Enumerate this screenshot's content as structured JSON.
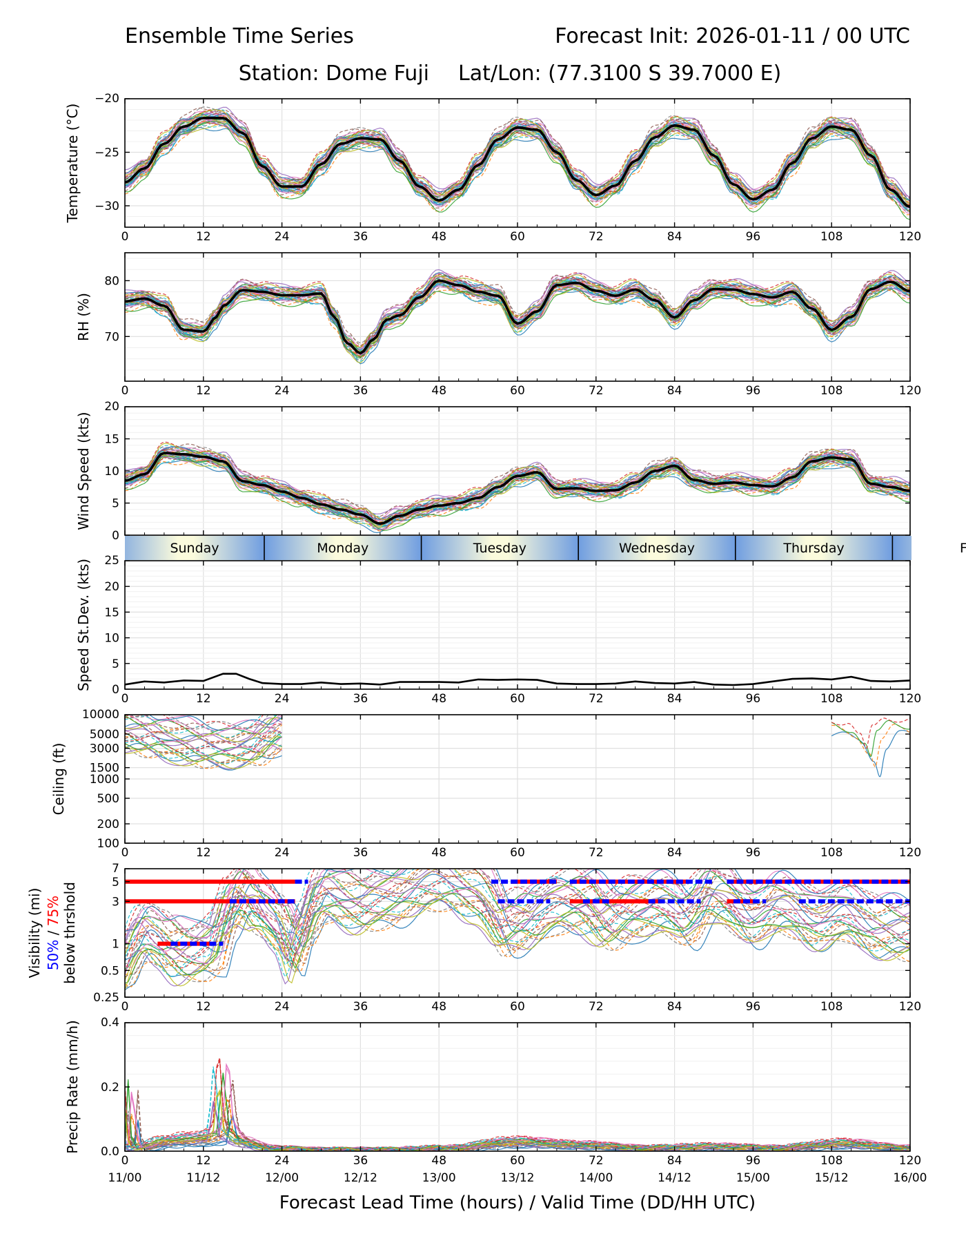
{
  "header": {
    "title_left": "Ensemble Time Series",
    "title_right": "Forecast Init: 2026-01-11 / 00 UTC",
    "subtitle_station": "Station: Dome Fuji",
    "subtitle_latlon": "Lat/Lon: (77.3100 S 39.7000 E)"
  },
  "x_axis": {
    "label": "Forecast Lead Time (hours) / Valid Time (DD/HH UTC)",
    "lead_ticks": [
      0,
      12,
      24,
      36,
      48,
      60,
      72,
      84,
      96,
      108,
      120
    ],
    "lead_tick_labels": [
      "0",
      "12",
      "24",
      "36",
      "48",
      "60",
      "72",
      "84",
      "96",
      "108",
      "120"
    ],
    "valid_labels": [
      "11/00",
      "11/12",
      "12/00",
      "12/12",
      "13/00",
      "13/12",
      "14/00",
      "14/12",
      "15/00",
      "15/12",
      "16/00"
    ],
    "xlim": [
      0,
      120
    ]
  },
  "day_bar": {
    "days": [
      "Sunday",
      "Monday",
      "Tuesday",
      "Wednesday",
      "Thursday"
    ],
    "day_start_hours": [
      0,
      21.3,
      45.3,
      69.3,
      93.3
    ],
    "next_day_hour": 117.3,
    "overflow_label": "F"
  },
  "colors": {
    "mean_line": "#000000",
    "p50": "#0000ff",
    "p75": "#ff0000",
    "grid": "#e0e0e0",
    "day_dark": "#6f9de0",
    "day_light": "#fbfbdc"
  },
  "chart_data": [
    {
      "type": "line",
      "id": "temperature",
      "ylabel": "Temperature (°C)",
      "ylim": [
        -32,
        -20
      ],
      "yticks": [
        -30,
        -25,
        -20
      ],
      "ytick_labels": [
        "−30",
        "−25",
        "−20"
      ],
      "series": [
        {
          "name": "Ensemble mean",
          "x": [
            0,
            3,
            6,
            9,
            12,
            15,
            18,
            21,
            24,
            27,
            30,
            33,
            36,
            39,
            42,
            45,
            48,
            51,
            54,
            57,
            60,
            63,
            66,
            69,
            72,
            75,
            78,
            81,
            84,
            87,
            90,
            93,
            96,
            99,
            102,
            105,
            108,
            111,
            114,
            117,
            120
          ],
          "values": [
            -27.8,
            -26.5,
            -24.2,
            -22.6,
            -21.8,
            -21.8,
            -23.2,
            -26.3,
            -28.2,
            -28.2,
            -26.1,
            -24.2,
            -23.7,
            -23.8,
            -25.8,
            -28.2,
            -29.5,
            -28.5,
            -26.2,
            -23.8,
            -22.7,
            -22.9,
            -25.0,
            -27.6,
            -29.0,
            -28.1,
            -25.8,
            -23.6,
            -22.5,
            -22.9,
            -25.3,
            -28.0,
            -29.4,
            -28.5,
            -26.0,
            -23.7,
            -22.6,
            -22.9,
            -25.3,
            -28.5,
            -30.1
          ]
        }
      ]
    },
    {
      "type": "line",
      "id": "relative_humidity",
      "ylabel": "RH (%)",
      "ylim": [
        62,
        85
      ],
      "yticks": [
        70,
        80
      ],
      "ytick_labels": [
        "70",
        "80"
      ],
      "series": [
        {
          "name": "Ensemble mean",
          "x": [
            0,
            3,
            6,
            9,
            12,
            14,
            15,
            18,
            21,
            24,
            27,
            30,
            32,
            34,
            36,
            38,
            40,
            42,
            45,
            48,
            51,
            54,
            57,
            60,
            63,
            66,
            69,
            72,
            75,
            78,
            81,
            84,
            87,
            90,
            93,
            96,
            99,
            102,
            105,
            108,
            111,
            114,
            117,
            120
          ],
          "values": [
            76.3,
            76.8,
            75.5,
            71.2,
            70.9,
            73.5,
            75.5,
            78.3,
            78.0,
            77.4,
            77.4,
            77.7,
            73.5,
            68.8,
            67.0,
            69.5,
            73.0,
            73.8,
            77.0,
            80.0,
            79.2,
            78.0,
            77.3,
            72.3,
            74.5,
            79.2,
            79.6,
            78.2,
            77.3,
            78.4,
            76.5,
            73.4,
            76.5,
            78.5,
            78.4,
            77.6,
            77.0,
            78.0,
            75.0,
            71.2,
            73.5,
            78.5,
            79.8,
            78.1
          ]
        }
      ]
    },
    {
      "type": "line",
      "id": "wind_speed",
      "ylabel": "Wind Speed (kts)",
      "ylim": [
        0,
        20
      ],
      "yticks": [
        0,
        5,
        10,
        15,
        20
      ],
      "ytick_labels": [
        "0",
        "5",
        "10",
        "15",
        "20"
      ],
      "series": [
        {
          "name": "Ensemble mean",
          "x": [
            0,
            3,
            6,
            9,
            12,
            15,
            18,
            21,
            24,
            27,
            30,
            33,
            36,
            39,
            42,
            45,
            48,
            51,
            54,
            57,
            60,
            63,
            66,
            69,
            72,
            75,
            78,
            81,
            84,
            87,
            90,
            93,
            96,
            99,
            102,
            105,
            108,
            111,
            114,
            117,
            120
          ],
          "values": [
            8.5,
            9.5,
            12.8,
            12.6,
            12.2,
            11.5,
            8.4,
            7.8,
            6.8,
            5.8,
            4.8,
            4.0,
            3.2,
            1.8,
            3.0,
            4.0,
            4.6,
            5.0,
            5.8,
            7.5,
            9.2,
            9.8,
            7.2,
            7.3,
            6.9,
            7.0,
            8.2,
            10.0,
            10.8,
            8.6,
            8.0,
            8.2,
            7.8,
            7.6,
            9.0,
            11.5,
            12.1,
            11.8,
            8.0,
            7.5,
            6.9
          ]
        }
      ]
    },
    {
      "type": "line",
      "id": "speed_stdev",
      "ylabel": "Speed St.Dev. (kts)",
      "ylim": [
        0,
        25
      ],
      "yticks": [
        0,
        5,
        10,
        15,
        20,
        25
      ],
      "ytick_labels": [
        "0",
        "5",
        "10",
        "15",
        "20",
        "25"
      ],
      "series": [
        {
          "name": "Standard deviation",
          "x": [
            0,
            3,
            6,
            9,
            12,
            15,
            17,
            19,
            21,
            24,
            27,
            30,
            33,
            36,
            39,
            42,
            45,
            48,
            51,
            54,
            57,
            60,
            63,
            66,
            69,
            72,
            75,
            78,
            81,
            84,
            87,
            90,
            93,
            96,
            99,
            102,
            105,
            108,
            111,
            114,
            117,
            120
          ],
          "values": [
            0.9,
            1.5,
            1.3,
            1.7,
            1.6,
            3.0,
            3.0,
            2.0,
            1.2,
            1.0,
            1.0,
            1.3,
            1.0,
            1.1,
            0.9,
            1.4,
            1.4,
            1.4,
            1.3,
            1.9,
            1.8,
            1.9,
            1.8,
            1.1,
            1.0,
            1.0,
            1.1,
            1.5,
            1.2,
            1.1,
            1.4,
            0.9,
            0.8,
            1.0,
            1.5,
            2.0,
            2.1,
            1.9,
            2.4,
            1.6,
            1.5,
            1.7
          ]
        }
      ]
    },
    {
      "type": "line",
      "id": "ceiling",
      "ylabel": "Ceiling (ft)",
      "yscale": "log",
      "ylim": [
        100,
        10000
      ],
      "yticks": [
        100,
        200,
        500,
        1000,
        1500,
        3000,
        5000,
        10000
      ],
      "ytick_labels": [
        "100",
        "200",
        "500",
        "1000",
        "1500",
        "3000",
        "5000",
        "10000"
      ],
      "series": [
        {
          "name": "Typical member",
          "x": [
            0,
            4,
            8,
            12,
            16,
            20,
            24
          ],
          "values": [
            6000,
            5000,
            4000,
            3500,
            3200,
            3800,
            6000
          ]
        },
        {
          "name": "Late dip member",
          "x": [
            108,
            111,
            113,
            114,
            115,
            117,
            120
          ],
          "values": [
            9000,
            8000,
            4500,
            2500,
            6000,
            9500,
            9000
          ]
        }
      ]
    },
    {
      "type": "line",
      "id": "visibility",
      "ylabel": "Visibility (mi)",
      "ylabel_p50": "50%",
      "ylabel_sep": " / ",
      "ylabel_p75": "75%",
      "ylabel_line3": "below thrshold",
      "yscale": "log",
      "ylim": [
        0.25,
        7
      ],
      "yticks": [
        0.25,
        0.5,
        1,
        3,
        5,
        7
      ],
      "ytick_labels": [
        "0.25",
        "0.5",
        "1",
        "3",
        "5",
        "7"
      ],
      "thresholds": [
        {
          "value": 5,
          "p75_ranges": [
            [
              0,
              26
            ],
            [
              59,
              66
            ],
            [
              68,
              86
            ],
            [
              92,
              120
            ]
          ],
          "p50_ranges": [
            [
              26,
              28
            ],
            [
              56,
              66
            ],
            [
              68,
              90
            ],
            [
              92,
              120
            ]
          ]
        },
        {
          "value": 3,
          "p75_ranges": [
            [
              0,
              26
            ],
            [
              68,
              82
            ],
            [
              92,
              96
            ]
          ],
          "p50_ranges": [
            [
              16,
              26
            ],
            [
              57,
              65
            ],
            [
              70,
              74
            ],
            [
              80,
              88
            ],
            [
              93,
              98
            ],
            [
              103,
              120
            ]
          ]
        },
        {
          "value": 1,
          "p75_ranges": [
            [
              5,
              13
            ]
          ],
          "p50_ranges": [
            [
              7,
              15
            ]
          ]
        }
      ],
      "series": [
        {
          "name": "Typical member",
          "x": [
            0,
            3,
            6,
            9,
            12,
            14,
            16,
            18,
            20,
            24,
            26,
            28,
            30,
            36,
            40,
            48,
            54,
            58,
            62,
            66,
            70,
            74,
            78,
            82,
            86,
            90,
            96,
            100,
            106,
            110,
            114,
            120
          ],
          "values": [
            0.6,
            1.5,
            1.0,
            0.8,
            0.9,
            1.0,
            2.5,
            4.0,
            3.0,
            1.5,
            0.8,
            2.0,
            4.0,
            3.0,
            3.5,
            5.5,
            4.0,
            1.6,
            2.0,
            3.0,
            3.0,
            2.0,
            2.5,
            3.0,
            2.0,
            4.0,
            2.0,
            3.0,
            1.8,
            2.5,
            1.6,
            1.5
          ]
        }
      ]
    },
    {
      "type": "line",
      "id": "precip_rate",
      "ylabel": "Precip Rate (mm/h)",
      "ylim": [
        0,
        0.4
      ],
      "yticks": [
        0,
        0.2,
        0.4
      ],
      "ytick_labels": [
        "0.0",
        "0.2",
        "0.4"
      ],
      "series": [
        {
          "name": "Typical member",
          "x": [
            0,
            0.5,
            1,
            2,
            6,
            10,
            12,
            14,
            15,
            16,
            18,
            22,
            30,
            40,
            50,
            60,
            70,
            80,
            90,
            100,
            110,
            120
          ],
          "values": [
            0.02,
            0.2,
            0.04,
            0.01,
            0.03,
            0.04,
            0.04,
            0.05,
            0.22,
            0.06,
            0.03,
            0.01,
            0.005,
            0.005,
            0.01,
            0.03,
            0.02,
            0.01,
            0.015,
            0.01,
            0.025,
            0.01
          ]
        }
      ]
    }
  ]
}
